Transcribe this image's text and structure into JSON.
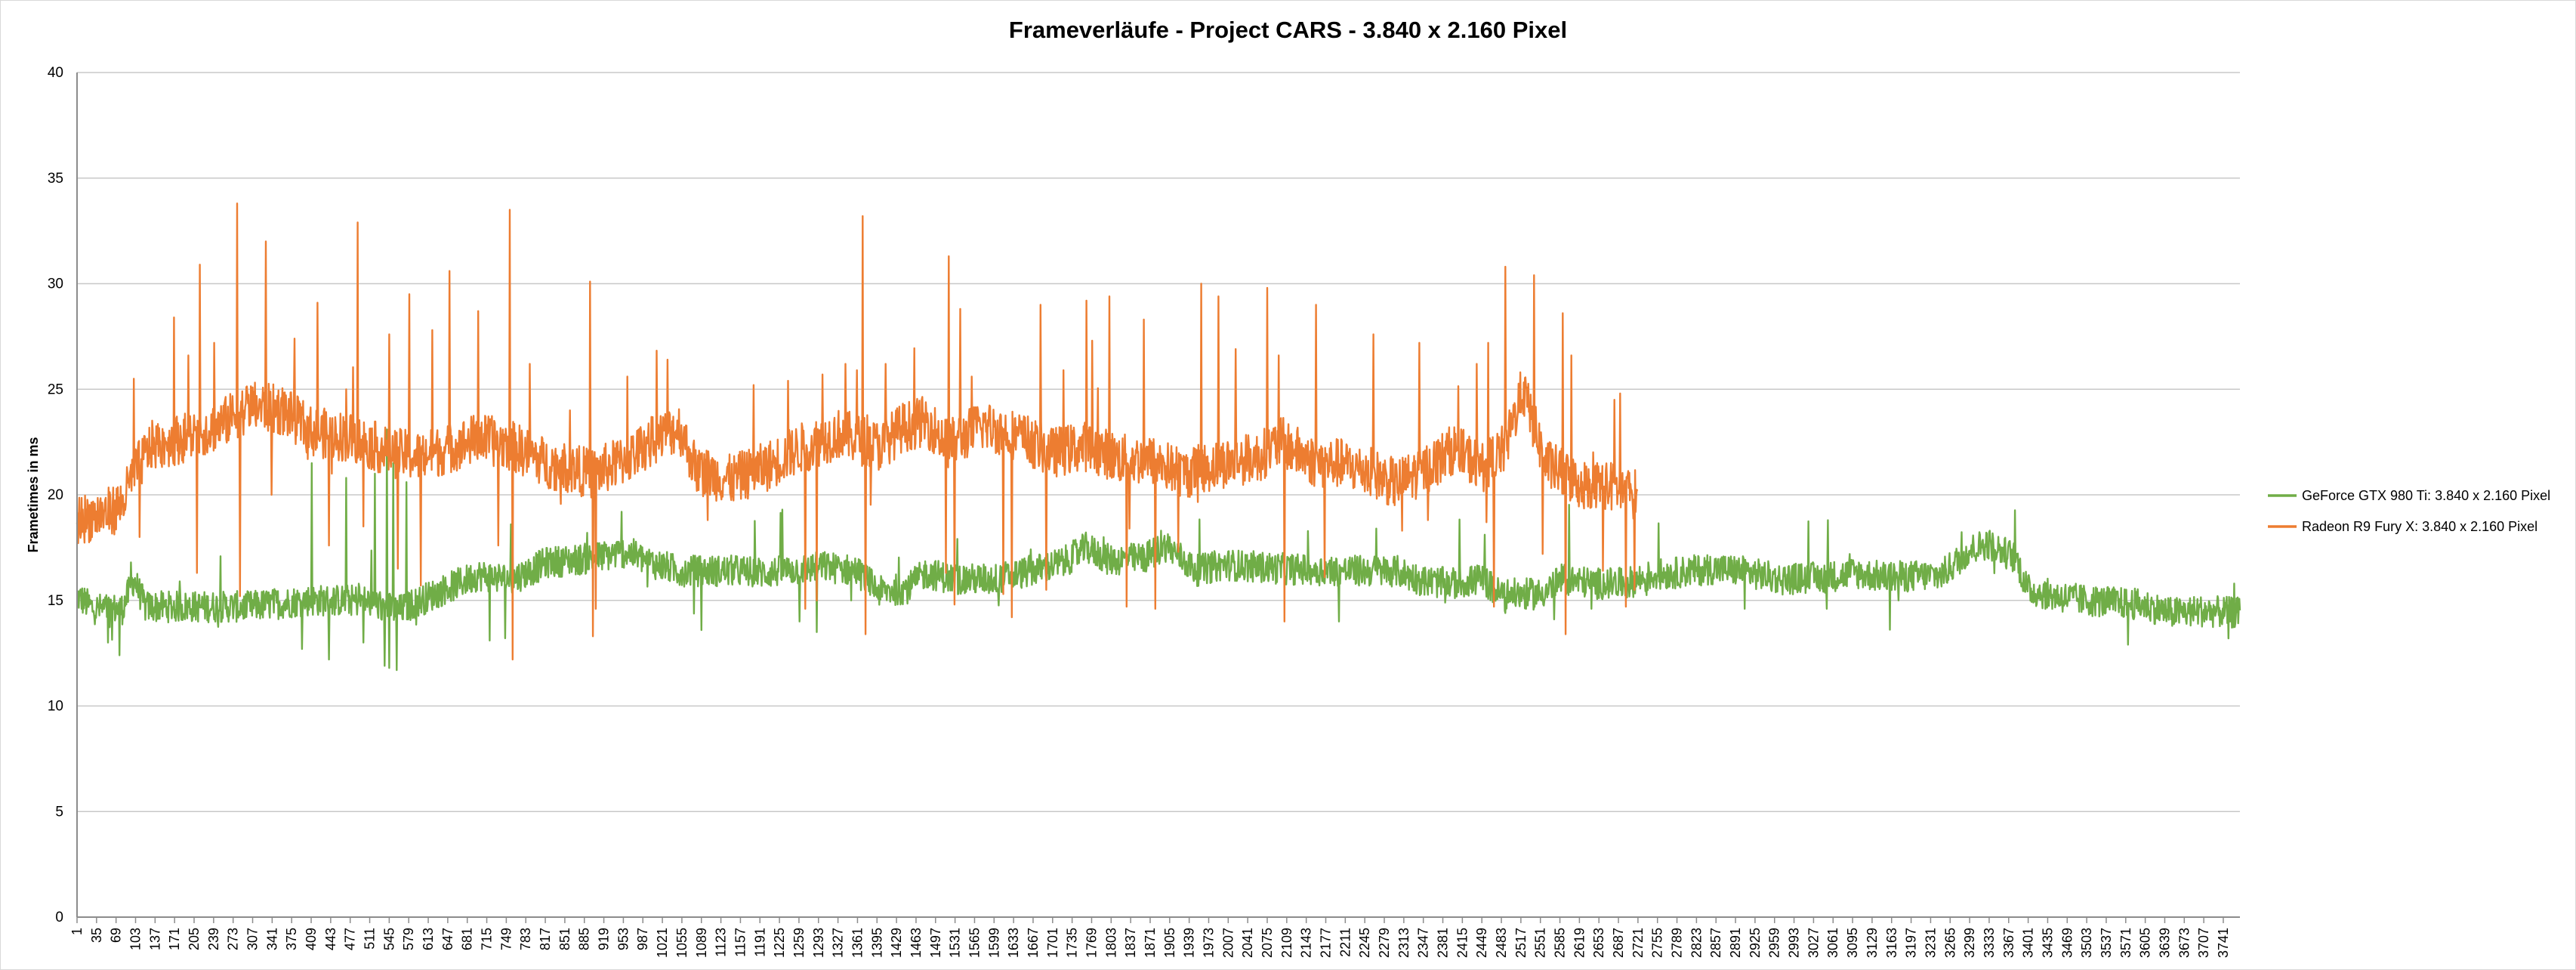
{
  "chart_data": {
    "type": "line",
    "title": "Frameverläufe - Project CARS - 3.840 x 2.160 Pixel",
    "xlabel": "",
    "ylabel": "Frametimes in ms",
    "ylim": [
      0,
      40
    ],
    "yticks": [
      0,
      5,
      10,
      15,
      20,
      25,
      30,
      35,
      40
    ],
    "xlim": [
      1,
      3770
    ],
    "xticks": [
      1,
      35,
      69,
      103,
      137,
      171,
      205,
      239,
      273,
      307,
      341,
      375,
      409,
      443,
      477,
      511,
      545,
      579,
      613,
      647,
      681,
      715,
      749,
      783,
      817,
      851,
      885,
      919,
      953,
      987,
      1021,
      1055,
      1089,
      1123,
      1157,
      1191,
      1225,
      1259,
      1293,
      1327,
      1361,
      1395,
      1429,
      1463,
      1497,
      1531,
      1565,
      1599,
      1633,
      1667,
      1701,
      1735,
      1769,
      1803,
      1837,
      1871,
      1905,
      1939,
      1973,
      2007,
      2041,
      2075,
      2109,
      2143,
      2177,
      2211,
      2245,
      2279,
      2313,
      2347,
      2381,
      2415,
      2449,
      2483,
      2517,
      2551,
      2585,
      2619,
      2653,
      2687,
      2721,
      2755,
      2789,
      2823,
      2857,
      2891,
      2925,
      2959,
      2993,
      3027,
      3061,
      3095,
      3129,
      3163,
      3197,
      3231,
      3265,
      3299,
      3333,
      3367,
      3401,
      3435,
      3469,
      3503,
      3537,
      3571,
      3605,
      3639,
      3673,
      3707,
      3741
    ],
    "grid": true,
    "legend_position": "right",
    "series": [
      {
        "name": "GeForce GTX 980 Ti: 3.840 x 2.160 Pixel",
        "color": "#70ad47",
        "length": 3770,
        "baseline": [
          [
            1,
            15.2
          ],
          [
            30,
            14.6
          ],
          [
            80,
            14.6
          ],
          [
            100,
            16.0
          ],
          [
            120,
            14.7
          ],
          [
            200,
            14.7
          ],
          [
            300,
            14.7
          ],
          [
            400,
            15.0
          ],
          [
            500,
            15.0
          ],
          [
            560,
            14.5
          ],
          [
            640,
            15.5
          ],
          [
            700,
            16.2
          ],
          [
            760,
            16.0
          ],
          [
            820,
            16.8
          ],
          [
            900,
            17.0
          ],
          [
            960,
            17.3
          ],
          [
            1000,
            16.8
          ],
          [
            1050,
            16.4
          ],
          [
            1150,
            16.4
          ],
          [
            1200,
            16.3
          ],
          [
            1300,
            16.6
          ],
          [
            1360,
            16.4
          ],
          [
            1400,
            15.4
          ],
          [
            1450,
            15.6
          ],
          [
            1480,
            16.3
          ],
          [
            1530,
            16.0
          ],
          [
            1600,
            16.0
          ],
          [
            1680,
            16.5
          ],
          [
            1720,
            16.8
          ],
          [
            1760,
            17.5
          ],
          [
            1800,
            16.9
          ],
          [
            1860,
            17.0
          ],
          [
            1900,
            17.6
          ],
          [
            1950,
            16.4
          ],
          [
            2000,
            16.7
          ],
          [
            2100,
            16.5
          ],
          [
            2200,
            16.4
          ],
          [
            2300,
            16.4
          ],
          [
            2350,
            15.9
          ],
          [
            2400,
            15.8
          ],
          [
            2450,
            16.0
          ],
          [
            2480,
            15.3
          ],
          [
            2550,
            15.3
          ],
          [
            2590,
            16.0
          ],
          [
            2650,
            15.8
          ],
          [
            2700,
            15.8
          ],
          [
            2750,
            16.2
          ],
          [
            2850,
            16.5
          ],
          [
            2900,
            16.4
          ],
          [
            2970,
            16.0
          ],
          [
            3050,
            16.1
          ],
          [
            3100,
            16.3
          ],
          [
            3150,
            16.1
          ],
          [
            3250,
            16.2
          ],
          [
            3300,
            17.4
          ],
          [
            3330,
            17.7
          ],
          [
            3380,
            17.0
          ],
          [
            3400,
            15.5
          ],
          [
            3450,
            15.2
          ],
          [
            3500,
            15.0
          ],
          [
            3600,
            14.8
          ],
          [
            3650,
            14.4
          ],
          [
            3700,
            14.5
          ],
          [
            3770,
            14.4
          ]
        ],
        "noise": 0.75,
        "spikes": [
          [
            55,
            13.0
          ],
          [
            75,
            12.4
          ],
          [
            95,
            16.8
          ],
          [
            180,
            15.9
          ],
          [
            410,
            21.5
          ],
          [
            440,
            12.2
          ],
          [
            470,
            20.8
          ],
          [
            500,
            13.0
          ],
          [
            520,
            21.0
          ],
          [
            537,
            11.9
          ],
          [
            541,
            23.1
          ],
          [
            545,
            11.8
          ],
          [
            552,
            21.5
          ],
          [
            558,
            11.7
          ],
          [
            575,
            20.6
          ],
          [
            640,
            15.8
          ],
          [
            720,
            13.1
          ],
          [
            760,
            17.2
          ],
          [
            890,
            18.2
          ],
          [
            950,
            19.2
          ],
          [
            1230,
            19.3
          ],
          [
            1260,
            14.0
          ],
          [
            1290,
            13.5
          ],
          [
            1350,
            15.0
          ],
          [
            1790,
            18.0
          ],
          [
            1890,
            18.3
          ],
          [
            2200,
            14.0
          ],
          [
            2265,
            18.4
          ],
          [
            2490,
            14.4
          ],
          [
            2575,
            14.1
          ],
          [
            2640,
            14.6
          ],
          [
            3050,
            14.6
          ],
          [
            3090,
            17.2
          ],
          [
            3175,
            15.0
          ],
          [
            3575,
            12.9
          ],
          [
            3750,
            13.2
          ],
          [
            3760,
            15.8
          ]
        ]
      },
      {
        "name": "Radeon R9 Fury X: 3.840 x 2.160 Pixel",
        "color": "#ed7d31",
        "length": 2720,
        "baseline": [
          [
            1,
            18.8
          ],
          [
            60,
            19.2
          ],
          [
            80,
            19.6
          ],
          [
            100,
            21.0
          ],
          [
            130,
            22.3
          ],
          [
            200,
            22.8
          ],
          [
            250,
            23.3
          ],
          [
            300,
            24.2
          ],
          [
            360,
            24.0
          ],
          [
            410,
            23.0
          ],
          [
            480,
            22.7
          ],
          [
            550,
            22.0
          ],
          [
            600,
            21.8
          ],
          [
            650,
            22.2
          ],
          [
            700,
            22.7
          ],
          [
            760,
            22.3
          ],
          [
            820,
            21.5
          ],
          [
            900,
            21.0
          ],
          [
            960,
            21.7
          ],
          [
            1000,
            22.5
          ],
          [
            1050,
            23.2
          ],
          [
            1080,
            21.2
          ],
          [
            1140,
            20.7
          ],
          [
            1200,
            21.3
          ],
          [
            1260,
            22.2
          ],
          [
            1330,
            22.9
          ],
          [
            1400,
            22.3
          ],
          [
            1440,
            23.2
          ],
          [
            1480,
            23.5
          ],
          [
            1520,
            22.4
          ],
          [
            1580,
            23.3
          ],
          [
            1640,
            22.8
          ],
          [
            1700,
            22.0
          ],
          [
            1760,
            22.3
          ],
          [
            1820,
            21.7
          ],
          [
            1880,
            21.6
          ],
          [
            1930,
            21.0
          ],
          [
            2000,
            21.5
          ],
          [
            2060,
            21.8
          ],
          [
            2100,
            22.5
          ],
          [
            2160,
            21.5
          ],
          [
            2200,
            21.5
          ],
          [
            2260,
            21.0
          ],
          [
            2300,
            20.5
          ],
          [
            2350,
            21.2
          ],
          [
            2400,
            22.2
          ],
          [
            2450,
            21.3
          ],
          [
            2490,
            22.2
          ],
          [
            2520,
            25.0
          ],
          [
            2560,
            21.5
          ],
          [
            2620,
            20.5
          ],
          [
            2660,
            20.5
          ],
          [
            2720,
            20.0
          ]
        ],
        "noise": 1.2,
        "spikes": [
          [
            100,
            25.5
          ],
          [
            110,
            18.0
          ],
          [
            170,
            28.4
          ],
          [
            195,
            26.6
          ],
          [
            210,
            16.3
          ],
          [
            215,
            30.9
          ],
          [
            240,
            27.2
          ],
          [
            280,
            33.8
          ],
          [
            285,
            15.2
          ],
          [
            330,
            32.0
          ],
          [
            340,
            20.0
          ],
          [
            380,
            27.4
          ],
          [
            420,
            29.1
          ],
          [
            440,
            17.6
          ],
          [
            445,
            21.0
          ],
          [
            470,
            25.0
          ],
          [
            490,
            32.9
          ],
          [
            500,
            18.5
          ],
          [
            545,
            27.6
          ],
          [
            560,
            16.5
          ],
          [
            580,
            29.5
          ],
          [
            600,
            15.7
          ],
          [
            620,
            27.8
          ],
          [
            650,
            30.6
          ],
          [
            700,
            28.7
          ],
          [
            735,
            17.6
          ],
          [
            755,
            33.5
          ],
          [
            760,
            12.2
          ],
          [
            790,
            26.2
          ],
          [
            860,
            24.0
          ],
          [
            895,
            30.1
          ],
          [
            900,
            13.3
          ],
          [
            905,
            14.6
          ],
          [
            960,
            25.6
          ],
          [
            1030,
            26.4
          ],
          [
            1100,
            18.8
          ],
          [
            1180,
            25.2
          ],
          [
            1240,
            25.4
          ],
          [
            1270,
            14.6
          ],
          [
            1290,
            15.0
          ],
          [
            1300,
            25.7
          ],
          [
            1340,
            26.2
          ],
          [
            1360,
            25.9
          ],
          [
            1370,
            33.2
          ],
          [
            1375,
            13.4
          ],
          [
            1410,
            26.2
          ],
          [
            1490,
            23.7
          ],
          [
            1515,
            16.3
          ],
          [
            1520,
            31.3
          ],
          [
            1530,
            14.8
          ],
          [
            1540,
            28.8
          ],
          [
            1560,
            25.6
          ],
          [
            1615,
            15.3
          ],
          [
            1630,
            14.2
          ],
          [
            1680,
            29.0
          ],
          [
            1690,
            15.5
          ],
          [
            1720,
            25.9
          ],
          [
            1760,
            29.2
          ],
          [
            1770,
            27.3
          ],
          [
            1800,
            29.4
          ],
          [
            1830,
            14.7
          ],
          [
            1835,
            18.4
          ],
          [
            1860,
            28.3
          ],
          [
            1880,
            14.6
          ],
          [
            1920,
            17.3
          ],
          [
            1960,
            30.0
          ],
          [
            1990,
            29.4
          ],
          [
            2020,
            26.9
          ],
          [
            2075,
            29.8
          ],
          [
            2095,
            26.6
          ],
          [
            2105,
            14.0
          ],
          [
            2160,
            29.0
          ],
          [
            2175,
            16.1
          ],
          [
            2200,
            21.0
          ],
          [
            2260,
            27.6
          ],
          [
            2310,
            18.3
          ],
          [
            2340,
            27.2
          ],
          [
            2355,
            18.8
          ],
          [
            2440,
            26.2
          ],
          [
            2460,
            27.2
          ],
          [
            2470,
            14.7
          ],
          [
            2490,
            30.8
          ],
          [
            2540,
            30.4
          ],
          [
            2555,
            17.2
          ],
          [
            2590,
            28.6
          ],
          [
            2595,
            13.4
          ],
          [
            2605,
            26.6
          ],
          [
            2660,
            16.4
          ],
          [
            2680,
            24.5
          ],
          [
            2690,
            24.8
          ],
          [
            2700,
            14.7
          ],
          [
            2715,
            15.5
          ]
        ]
      }
    ]
  }
}
